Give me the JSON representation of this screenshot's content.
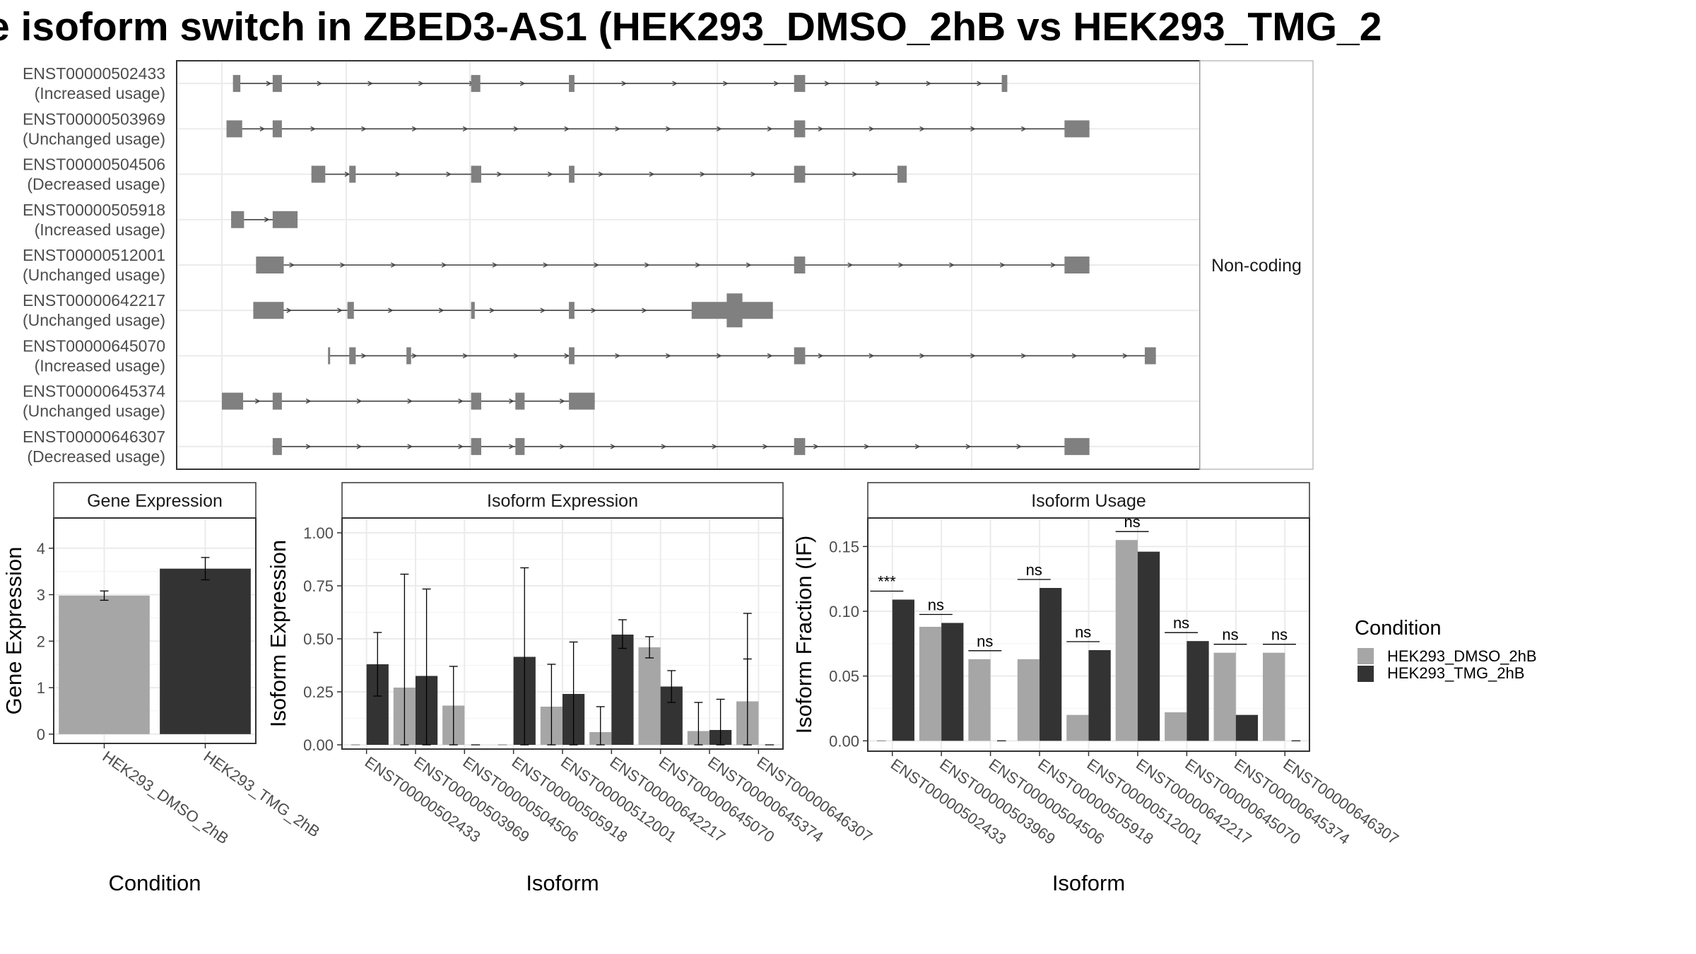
{
  "title": "e isoform switch in ZBED3-AS1 (HEK293_DMSO_2hB vs HEK293_TMG_2",
  "colors": {
    "dmso": "#a6a6a6",
    "tmg": "#333333",
    "exon": "#808080",
    "intron": "#444444",
    "grid": "#ebebeb",
    "panel_border": "#333333"
  },
  "structure": {
    "strip_label": "Non-coding",
    "isoforms": [
      {
        "id": "ENST00000502433",
        "usage": "(Increased usage)",
        "exons": [
          [
            0.012,
            0.02
          ],
          [
            0.055,
            0.065
          ],
          [
            0.27,
            0.28
          ],
          [
            0.376,
            0.382
          ],
          [
            0.62,
            0.632
          ],
          [
            0.845,
            0.851
          ]
        ]
      },
      {
        "id": "ENST00000503969",
        "usage": "(Unchanged usage)",
        "exons": [
          [
            0.005,
            0.022
          ],
          [
            0.055,
            0.065
          ],
          [
            0.62,
            0.632
          ],
          [
            0.913,
            0.94
          ]
        ]
      },
      {
        "id": "ENST00000504506",
        "usage": "(Decreased usage)",
        "exons": [
          [
            0.097,
            0.112
          ],
          [
            0.138,
            0.145
          ],
          [
            0.27,
            0.281
          ],
          [
            0.376,
            0.382
          ],
          [
            0.62,
            0.632
          ],
          [
            0.732,
            0.742
          ]
        ]
      },
      {
        "id": "ENST00000505918",
        "usage": "(Increased usage)",
        "exons": [
          [
            0.01,
            0.024
          ],
          [
            0.055,
            0.082
          ]
        ]
      },
      {
        "id": "ENST00000512001",
        "usage": "(Unchanged usage)",
        "exons": [
          [
            0.037,
            0.067
          ],
          [
            0.62,
            0.632
          ],
          [
            0.913,
            0.94
          ]
        ]
      },
      {
        "id": "ENST00000642217",
        "usage": "(Unchanged usage)",
        "exons": [
          [
            0.034,
            0.067
          ],
          [
            0.136,
            0.143
          ],
          [
            0.27,
            0.274
          ],
          [
            0.376,
            0.382
          ],
          [
            0.509,
            0.597
          ]
        ],
        "thick": [
          [
            0.547,
            0.564
          ]
        ]
      },
      {
        "id": "ENST00000645070",
        "usage": "(Increased usage)",
        "exons": [
          [
            0.115,
            0.117
          ],
          [
            0.138,
            0.145
          ],
          [
            0.2,
            0.205
          ],
          [
            0.376,
            0.382
          ],
          [
            0.62,
            0.632
          ],
          [
            1.0,
            1.012
          ]
        ]
      },
      {
        "id": "ENST00000645374",
        "usage": "(Unchanged usage)",
        "exons": [
          [
            0.0,
            0.023
          ],
          [
            0.055,
            0.065
          ],
          [
            0.27,
            0.281
          ],
          [
            0.318,
            0.328
          ],
          [
            0.376,
            0.404
          ]
        ]
      },
      {
        "id": "ENST00000646307",
        "usage": "(Decreased usage)",
        "exons": [
          [
            0.055,
            0.065
          ],
          [
            0.27,
            0.281
          ],
          [
            0.318,
            0.328
          ],
          [
            0.62,
            0.632
          ],
          [
            0.913,
            0.94
          ]
        ]
      }
    ]
  },
  "chart_data": [
    {
      "type": "bar",
      "title": "Gene Expression",
      "xlabel": "Condition",
      "ylabel": "Gene Expression",
      "ylim": [
        -0.2,
        4.65
      ],
      "yticks": [
        0,
        1,
        2,
        3,
        4
      ],
      "categories": [
        "HEK293_DMSO_2hB",
        "HEK293_TMG_2hB"
      ],
      "values": [
        2.98,
        3.56
      ],
      "err_low": [
        2.88,
        3.32
      ],
      "err_high": [
        3.08,
        3.8
      ]
    },
    {
      "type": "bar",
      "title": "Isoform Expression",
      "xlabel": "Isoform",
      "ylabel": "Isoform Expression",
      "ylim": [
        -0.02,
        1.07
      ],
      "yticks": [
        "0.00",
        "0.25",
        "0.50",
        "0.75",
        "1.00"
      ],
      "categories": [
        "ENST00000502433",
        "ENST00000503969",
        "ENST00000504506",
        "ENST00000505918",
        "ENST00000512001",
        "ENST00000642217",
        "ENST00000645070",
        "ENST00000645374",
        "ENST00000646307"
      ],
      "series": [
        {
          "name": "HEK293_DMSO_2hB",
          "values": [
            0.0,
            0.27,
            0.185,
            0.0,
            0.18,
            0.06,
            0.46,
            0.065,
            0.205
          ],
          "err_low": [
            0.0,
            0.0,
            0.0,
            0.0,
            0.0,
            0.0,
            0.41,
            0.0,
            0.0
          ],
          "err_high": [
            0.0,
            0.805,
            0.37,
            0.0,
            0.38,
            0.18,
            0.51,
            0.2,
            0.62
          ]
        },
        {
          "name": "HEK293_TMG_2hB",
          "values": [
            0.38,
            0.325,
            0.0,
            0.415,
            0.24,
            0.52,
            0.275,
            0.07,
            0.0
          ],
          "err_low": [
            0.23,
            0.0,
            0.0,
            0.0,
            0.0,
            0.455,
            0.2,
            0.0,
            0.0
          ],
          "err_high": [
            0.53,
            0.735,
            0.0,
            0.835,
            0.485,
            0.59,
            0.35,
            0.215,
            0.0
          ]
        }
      ],
      "extra_dmso_bar": {
        "index": 8,
        "value": 0.2,
        "err_high": 0.405
      }
    },
    {
      "type": "bar",
      "title": "Isoform Usage",
      "xlabel": "Isoform",
      "ylabel": "Isoform Fraction (IF)",
      "ylim": [
        -0.008,
        0.172
      ],
      "yticks": [
        "0.00",
        "0.05",
        "0.10",
        "0.15"
      ],
      "categories": [
        "ENST00000502433",
        "ENST00000503969",
        "ENST00000504506",
        "ENST00000505918",
        "ENST00000512001",
        "ENST00000642217",
        "ENST00000645070",
        "ENST00000645374",
        "ENST00000646307"
      ],
      "series": [
        {
          "name": "HEK293_DMSO_2hB",
          "values": [
            0.0,
            0.088,
            0.063,
            0.063,
            0.02,
            0.155,
            0.022,
            0.068,
            0.068
          ]
        },
        {
          "name": "HEK293_TMG_2hB",
          "values": [
            0.109,
            0.091,
            0.0,
            0.118,
            0.07,
            0.146,
            0.077,
            0.02,
            0.0
          ]
        }
      ],
      "significance": [
        "***",
        "ns",
        "ns",
        "ns",
        "ns",
        "ns",
        "ns",
        "ns",
        "ns"
      ]
    }
  ],
  "legend": {
    "title": "Condition",
    "items": [
      "HEK293_DMSO_2hB",
      "HEK293_TMG_2hB"
    ]
  }
}
